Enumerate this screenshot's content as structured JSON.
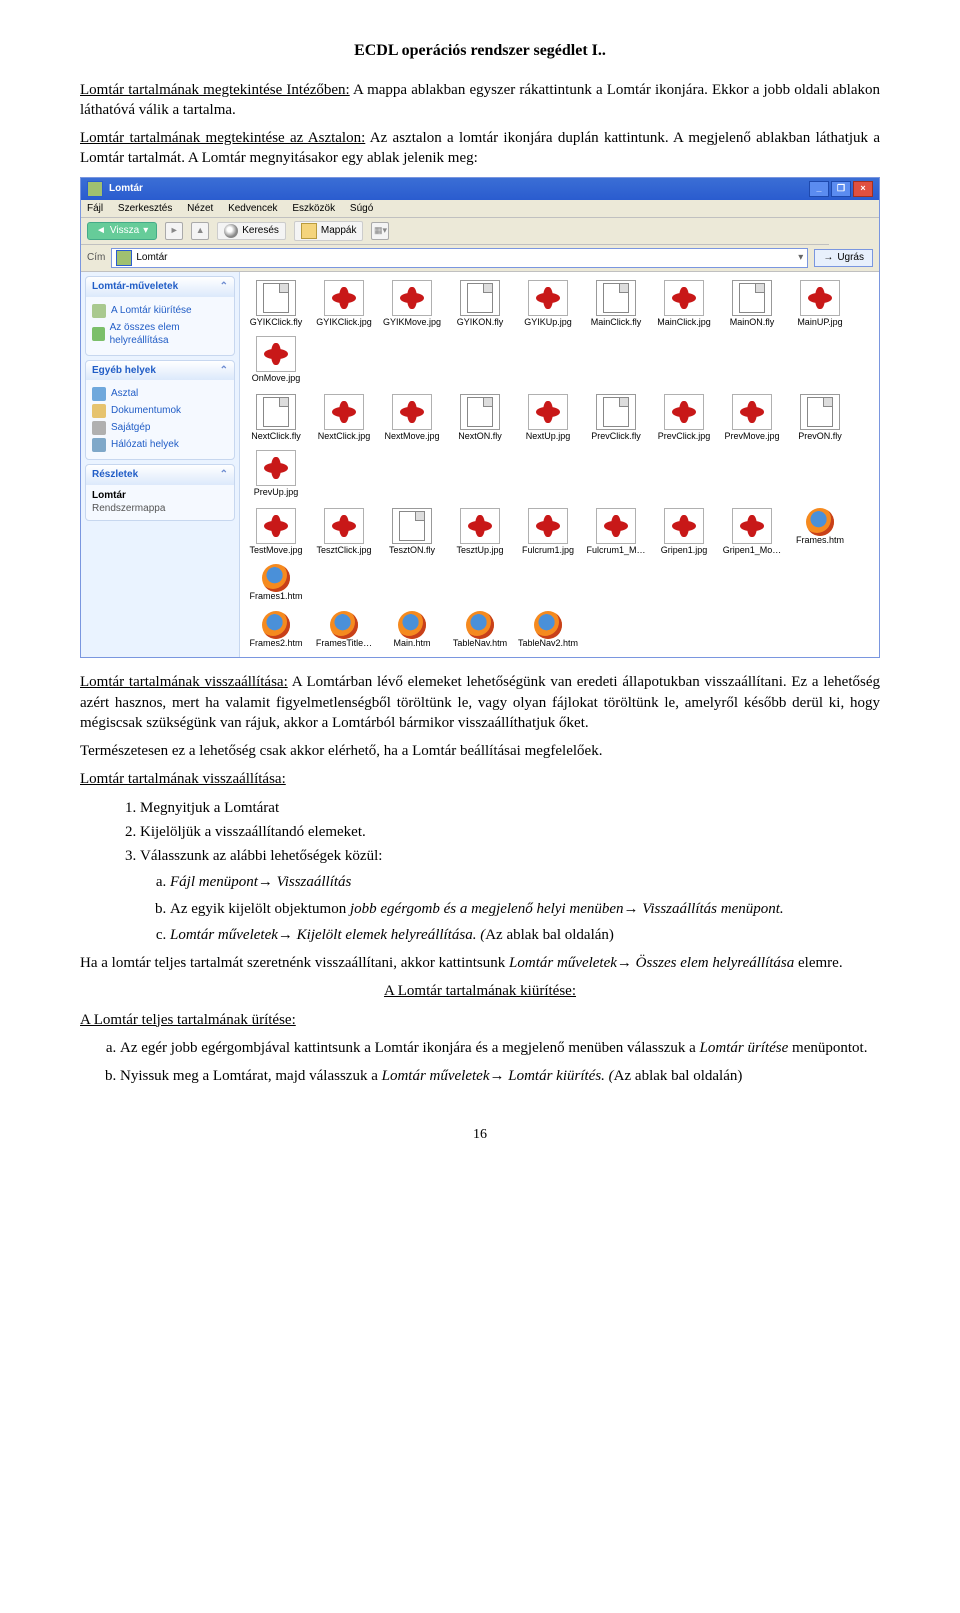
{
  "header": {
    "title": "ECDL operációs rendszer segédlet I.."
  },
  "para1": {
    "lead_u": "Lomtár tartalmának megtekintése Intézőben:",
    "rest": " A mappa ablakban egyszer rákattintunk a Lomtár ikonjára. Ekkor a jobb oldali ablakon láthatóvá válik a tartalma."
  },
  "para2": {
    "lead_u": "Lomtár tartalmának megtekintése az Asztalon:",
    "rest": " Az asztalon a lomtár ikonjára duplán kattintunk. A megjelenő ablakban láthatjuk a Lomtár tartalmát. A Lomtár megnyitásakor egy ablak jelenik meg:"
  },
  "win": {
    "title": "Lomtár",
    "menu": [
      "Fájl",
      "Szerkesztés",
      "Nézet",
      "Kedvencek",
      "Eszközök",
      "Súgó"
    ],
    "toolbar": {
      "back": "Vissza",
      "search": "Keresés",
      "folders": "Mappák"
    },
    "addr": {
      "label": "Cím",
      "value": "Lomtár",
      "go": "Ugrás"
    },
    "panels": [
      {
        "title": "Lomtár-műveletek",
        "items": [
          {
            "ic": "ic-trash",
            "label": "A Lomtár kiürítése"
          },
          {
            "ic": "ic-restore",
            "label": "Az összes elem helyreállítása"
          }
        ]
      },
      {
        "title": "Egyéb helyek",
        "items": [
          {
            "ic": "ic-desk",
            "label": "Asztal"
          },
          {
            "ic": "ic-docs",
            "label": "Dokumentumok"
          },
          {
            "ic": "ic-pc",
            "label": "Sajátgép"
          },
          {
            "ic": "ic-net",
            "label": "Hálózati helyek"
          }
        ]
      },
      {
        "title": "Részletek",
        "detail_name": "Lomtár",
        "detail_type": "Rendszermappa"
      }
    ],
    "rows": [
      [
        {
          "t": "doc",
          "n": "GYIKClick.fly"
        },
        {
          "t": "splat",
          "n": "GYIKClick.jpg"
        },
        {
          "t": "splat",
          "n": "GYIKMove.jpg"
        },
        {
          "t": "doc",
          "n": "GYIKON.fly"
        },
        {
          "t": "splat",
          "n": "GYIKUp.jpg"
        },
        {
          "t": "doc",
          "n": "MainClick.fly"
        },
        {
          "t": "splat",
          "n": "MainClick.jpg"
        },
        {
          "t": "doc",
          "n": "MainON.fly"
        },
        {
          "t": "splat",
          "n": "MainUP.jpg"
        },
        {
          "t": "splat",
          "n": "OnMove.jpg"
        }
      ],
      [
        {
          "t": "doc",
          "n": "NextClick.fly"
        },
        {
          "t": "splat",
          "n": "NextClick.jpg"
        },
        {
          "t": "splat",
          "n": "NextMove.jpg"
        },
        {
          "t": "doc",
          "n": "NextON.fly"
        },
        {
          "t": "splat",
          "n": "NextUp.jpg"
        },
        {
          "t": "doc",
          "n": "PrevClick.fly"
        },
        {
          "t": "splat",
          "n": "PrevClick.jpg"
        },
        {
          "t": "splat",
          "n": "PrevMove.jpg"
        },
        {
          "t": "doc",
          "n": "PrevON.fly"
        },
        {
          "t": "splat",
          "n": "PrevUp.jpg"
        }
      ],
      [
        {
          "t": "splat",
          "n": "TestMove.jpg"
        },
        {
          "t": "splat",
          "n": "TesztClick.jpg"
        },
        {
          "t": "doc",
          "n": "TesztON.fly"
        },
        {
          "t": "splat",
          "n": "TesztUp.jpg"
        },
        {
          "t": "splat",
          "n": "Fulcrum1.jpg"
        },
        {
          "t": "splat",
          "n": "Fulcrum1_M…"
        },
        {
          "t": "splat",
          "n": "Gripen1.jpg"
        },
        {
          "t": "splat",
          "n": "Gripen1_Mo…"
        },
        {
          "t": "ff",
          "n": "Frames.htm"
        },
        {
          "t": "ff",
          "n": "Frames1.htm"
        }
      ],
      [
        {
          "t": "ff",
          "n": "Frames2.htm"
        },
        {
          "t": "ff",
          "n": "FramesTitle…"
        },
        {
          "t": "ff",
          "n": "Main.htm"
        },
        {
          "t": "ff",
          "n": "TableNav.htm"
        },
        {
          "t": "ff",
          "n": "TableNav2.htm"
        }
      ]
    ]
  },
  "para3": {
    "lead_u": "Lomtár tartalmának visszaállítása:",
    "rest": " A Lomtárban lévő elemeket lehetőségünk van eredeti állapotukban visszaállítani. Ez a lehetőség azért hasznos, mert ha valamit figyelmetlenségből töröltünk le, vagy olyan fájlokat töröltünk le, amelyről később derül ki, hogy mégiscsak szükségünk van rájuk, akkor a Lomtárból bármikor visszaállíthatjuk őket."
  },
  "para4": "Természetesen ez a lehetőség csak akkor elérhető, ha a Lomtár beállításai megfelelőek.",
  "heading_restore": "Lomtár tartalmának visszaállítása:",
  "steps": [
    "Megnyitjuk a Lomtárat",
    "Kijelöljük a visszaállítandó elemeket.",
    "Válasszunk az alábbi lehetőségek közül:"
  ],
  "opts": {
    "a_pre": "Fájl menüpont",
    "a_post": " Visszaállítás",
    "b_pre": "Az egyik kijelölt objektumon ",
    "b_i1": "jobb egérgomb és a megjelenő helyi menüben",
    "b_post": " Visszaállítás menüpont.",
    "c_i": "Lomtár műveletek",
    "c_mid": " Kijelölt elemek helyreállítása. (",
    "c_tail": "Az ablak bal oldalán)"
  },
  "para5": {
    "pre": "Ha a lomtár teljes tartalmát szeretnénk visszaállítani, akkor kattintsunk ",
    "i1": "Lomtár műveletek",
    "mid": "→",
    "i2": " Összes elem helyreállítása",
    "post": " elemre."
  },
  "heading_empty_center": "A Lomtár tartalmának kiürítése:",
  "heading_empty_full": "A Lomtár teljes tartalmának ürítése:",
  "empty": {
    "a_pre": "Az egér jobb egérgombjával kattintsunk a Lomtár ikonjára és a megjelenő menüben válasszuk a ",
    "a_i": "Lomtár ürítése",
    "a_post": " menüpontot.",
    "b_pre": "Nyissuk meg a Lomtárat, majd válasszuk a ",
    "b_i1": "Lomtár műveletek",
    "b_mid": "→",
    "b_i2": " Lomtár kiürítés. (",
    "b_post": "Az ablak bal oldalán)"
  },
  "page_num": "16"
}
